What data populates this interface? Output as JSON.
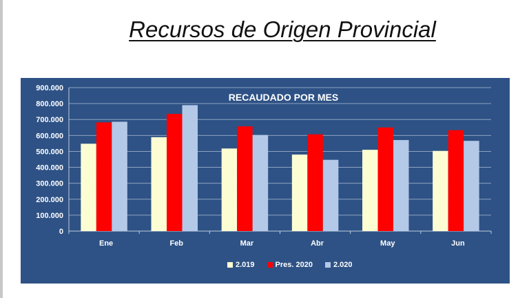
{
  "page_title": "Recursos de Origen Provincial",
  "chart_data": {
    "type": "bar",
    "title": "RECAUDADO POR MES",
    "categories": [
      "Ene",
      "Feb",
      "Mar",
      "Abr",
      "May",
      "Jun"
    ],
    "series": [
      {
        "name": "2.019",
        "color": "#fdfdd3",
        "values": [
          548000,
          589000,
          518000,
          480000,
          510000,
          503000
        ]
      },
      {
        "name": "Pres. 2020",
        "color": "#ff0000",
        "values": [
          682000,
          735000,
          657000,
          607000,
          650000,
          633000
        ]
      },
      {
        "name": "2.020",
        "color": "#b4c8e8",
        "values": [
          686000,
          790000,
          603000,
          447000,
          571000,
          566000
        ]
      }
    ],
    "ylim": [
      0,
      900000
    ],
    "yticks": [
      "0",
      "100.000",
      "200.000",
      "300.000",
      "400.000",
      "500.000",
      "600.000",
      "700.000",
      "800.000",
      "900.000"
    ],
    "grid": true,
    "legend_position": "bottom"
  }
}
